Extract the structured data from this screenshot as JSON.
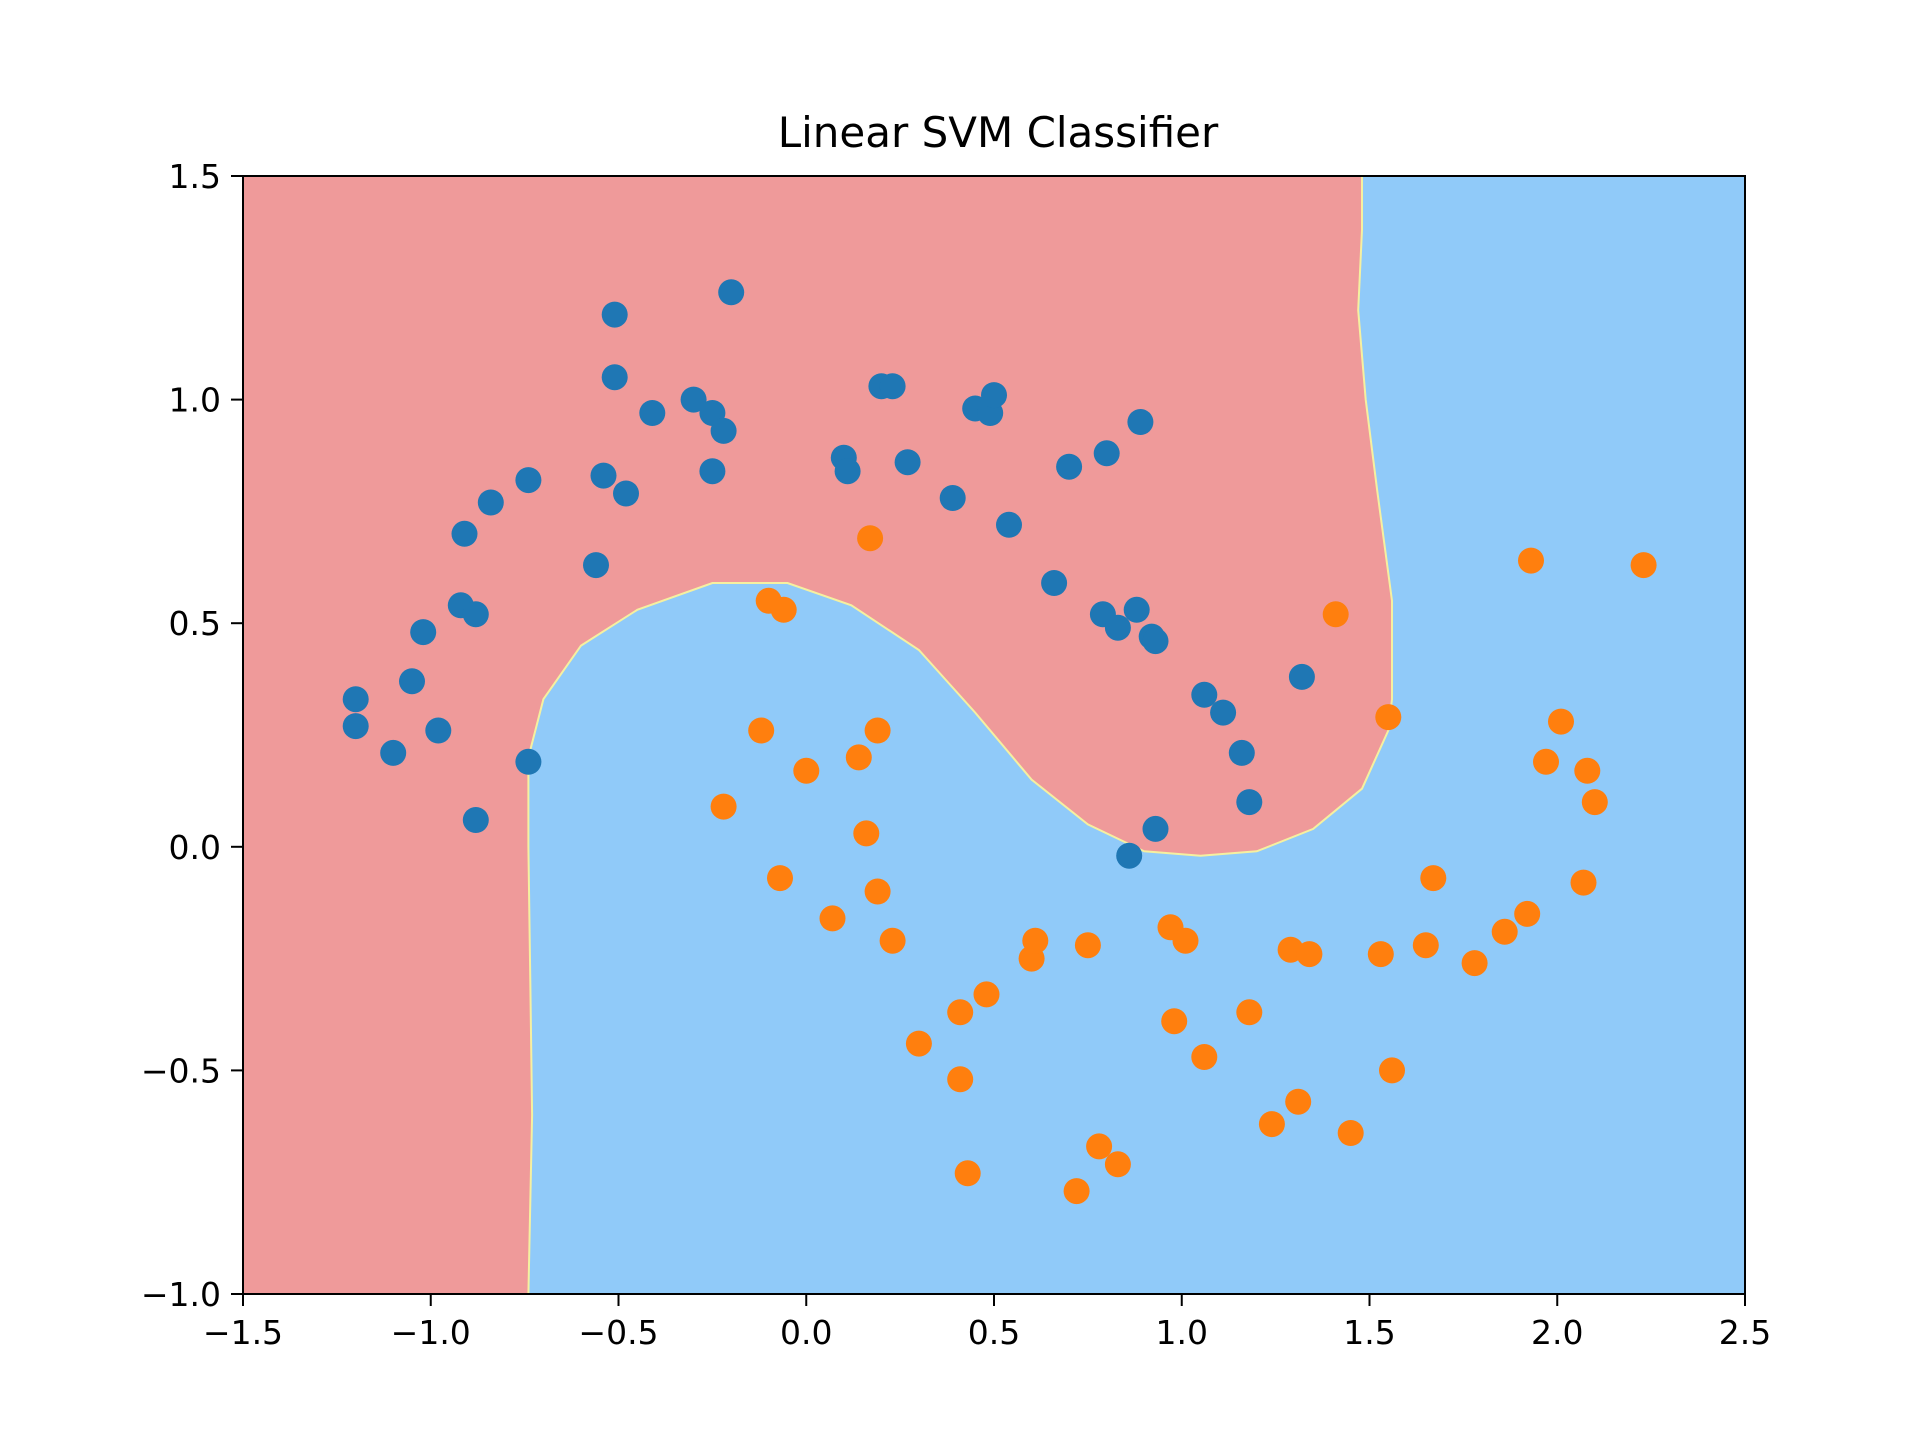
{
  "chart_data": {
    "type": "scatter",
    "title": "Linear SVM Classifier",
    "xlabel": "",
    "ylabel": "",
    "xlim": [
      -1.5,
      2.5
    ],
    "ylim": [
      -1.0,
      1.5
    ],
    "xticks": [
      -1.5,
      -1.0,
      -0.5,
      0.0,
      0.5,
      1.0,
      1.5,
      2.0,
      2.5
    ],
    "yticks": [
      -1.0,
      -0.5,
      0.0,
      0.5,
      1.0,
      1.5
    ],
    "xtick_labels": [
      "−1.5",
      "−1.0",
      "−0.5",
      "0.0",
      "0.5",
      "1.0",
      "1.5",
      "2.0",
      "2.5"
    ],
    "ytick_labels": [
      "−1.0",
      "−0.5",
      "0.0",
      "0.5",
      "1.0",
      "1.5"
    ],
    "grid": false,
    "colors": {
      "class0_region": "#ef9a9a",
      "class1_region": "#90caf9",
      "boundary": "#f5f0a0",
      "class0_points": "#1f77b4",
      "class1_points": "#ff7f0e"
    },
    "decision_boundary": [
      [
        -0.74,
        -1.0
      ],
      [
        -0.73,
        -0.6
      ],
      [
        -0.735,
        -0.3
      ],
      [
        -0.74,
        0.0
      ],
      [
        -0.74,
        0.2
      ],
      [
        -0.7,
        0.33
      ],
      [
        -0.6,
        0.45
      ],
      [
        -0.45,
        0.53
      ],
      [
        -0.25,
        0.59
      ],
      [
        -0.05,
        0.59
      ],
      [
        0.12,
        0.54
      ],
      [
        0.3,
        0.44
      ],
      [
        0.45,
        0.3
      ],
      [
        0.6,
        0.15
      ],
      [
        0.75,
        0.05
      ],
      [
        0.9,
        -0.01
      ],
      [
        1.05,
        -0.02
      ],
      [
        1.2,
        -0.01
      ],
      [
        1.35,
        0.04
      ],
      [
        1.48,
        0.13
      ],
      [
        1.55,
        0.26
      ],
      [
        1.56,
        0.33
      ],
      [
        1.56,
        0.55
      ],
      [
        1.52,
        0.8
      ],
      [
        1.49,
        1.0
      ],
      [
        1.47,
        1.2
      ],
      [
        1.48,
        1.38
      ],
      [
        1.48,
        1.5
      ]
    ],
    "series": [
      {
        "class": 0,
        "x": [
          -1.2,
          -1.2,
          -1.1,
          -1.05,
          -1.02,
          -0.98,
          -0.92,
          -0.91,
          -0.88,
          -0.88,
          -0.84,
          -0.74,
          -0.74,
          -0.56,
          -0.54,
          -0.51,
          -0.51,
          -0.48,
          -0.41,
          -0.3,
          -0.25,
          -0.25,
          -0.22,
          -0.2,
          0.1,
          0.11,
          0.2,
          0.23,
          0.27,
          0.39,
          0.45,
          0.49,
          0.5,
          0.54,
          0.66,
          0.7,
          0.79,
          0.8,
          0.83,
          0.86,
          0.88,
          0.89,
          0.92,
          0.93,
          0.93,
          1.06,
          1.11,
          1.16,
          1.18,
          1.32
        ],
        "y": [
          0.33,
          0.27,
          0.21,
          0.37,
          0.48,
          0.26,
          0.54,
          0.7,
          0.06,
          0.52,
          0.77,
          0.82,
          0.19,
          0.63,
          0.83,
          1.19,
          1.05,
          0.79,
          0.97,
          1.0,
          0.97,
          0.84,
          0.93,
          1.24,
          0.87,
          0.84,
          1.03,
          1.03,
          0.86,
          0.78,
          0.98,
          0.97,
          1.01,
          0.72,
          0.59,
          0.85,
          0.52,
          0.88,
          0.49,
          -0.02,
          0.53,
          0.95,
          0.47,
          0.46,
          0.04,
          0.34,
          0.3,
          0.21,
          0.1,
          0.38
        ]
      },
      {
        "class": 1,
        "x": [
          -0.22,
          -0.12,
          -0.1,
          -0.07,
          -0.06,
          0.0,
          0.07,
          0.14,
          0.16,
          0.17,
          0.19,
          0.19,
          0.23,
          0.3,
          0.41,
          0.41,
          0.43,
          0.48,
          0.6,
          0.61,
          0.75,
          0.72,
          0.78,
          0.83,
          0.97,
          0.98,
          1.01,
          1.06,
          1.18,
          1.24,
          1.29,
          1.31,
          1.34,
          1.41,
          1.45,
          1.53,
          1.55,
          1.56,
          1.65,
          1.67,
          1.78,
          1.86,
          1.92,
          1.93,
          1.97,
          2.01,
          2.07,
          2.08,
          2.1,
          2.23
        ],
        "y": [
          0.09,
          0.26,
          0.55,
          -0.07,
          0.53,
          0.17,
          -0.16,
          0.2,
          0.03,
          0.69,
          0.26,
          -0.1,
          -0.21,
          -0.44,
          -0.37,
          -0.52,
          -0.73,
          -0.33,
          -0.25,
          -0.21,
          -0.22,
          -0.77,
          -0.67,
          -0.71,
          -0.18,
          -0.39,
          -0.21,
          -0.47,
          -0.37,
          -0.62,
          -0.23,
          -0.57,
          -0.24,
          0.52,
          -0.64,
          -0.24,
          0.29,
          -0.5,
          -0.22,
          -0.07,
          -0.26,
          -0.19,
          -0.15,
          0.64,
          0.19,
          0.28,
          -0.08,
          0.17,
          0.1,
          0.63
        ]
      }
    ]
  }
}
